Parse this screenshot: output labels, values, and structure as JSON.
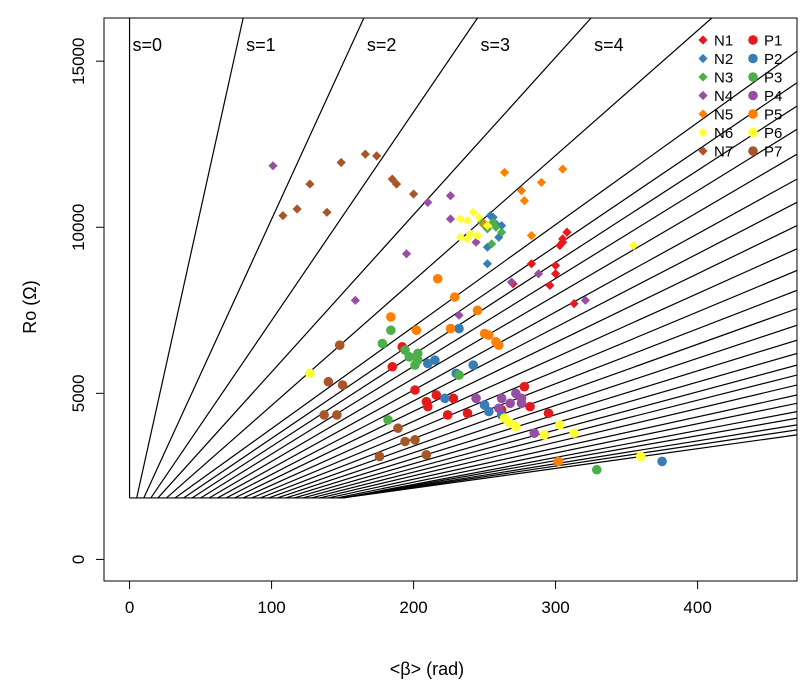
{
  "chart_data": {
    "type": "scatter",
    "title": "",
    "xlabel": "<β> (rad)",
    "ylabel": "Ro (Ω)",
    "xlim": [
      -18,
      470
    ],
    "ylim": [
      -650,
      16300
    ],
    "x_ticks": [
      0,
      100,
      200,
      300,
      400
    ],
    "y_ticks": [
      0,
      5000,
      10000,
      15000
    ],
    "grid": false,
    "legend_position": "top-right",
    "reference_lines": {
      "labels": [
        "s=0",
        "s=1",
        "s=2",
        "s=3",
        "s=4"
      ],
      "base_y": 1850,
      "lines": [
        {
          "from": [
            0,
            1850
          ],
          "to": [
            0,
            16300
          ]
        },
        {
          "from": [
            5,
            1850
          ],
          "to": [
            80,
            16300
          ]
        },
        {
          "from": [
            10,
            1850
          ],
          "to": [
            165,
            16300
          ]
        },
        {
          "from": [
            15,
            1850
          ],
          "to": [
            245,
            16300
          ]
        },
        {
          "from": [
            20,
            1850
          ],
          "to": [
            325,
            16300
          ]
        },
        {
          "from": [
            26,
            1850
          ],
          "to": [
            410,
            16300
          ]
        },
        {
          "from": [
            32,
            1850
          ],
          "to": [
            470,
            15300
          ]
        },
        {
          "from": [
            38,
            1850
          ],
          "to": [
            470,
            14350
          ]
        },
        {
          "from": [
            44,
            1850
          ],
          "to": [
            470,
            13650
          ]
        },
        {
          "from": [
            50,
            1850
          ],
          "to": [
            470,
            12950
          ]
        },
        {
          "from": [
            56,
            1850
          ],
          "to": [
            470,
            12200
          ]
        },
        {
          "from": [
            62,
            1850
          ],
          "to": [
            470,
            11450
          ]
        },
        {
          "from": [
            68,
            1850
          ],
          "to": [
            470,
            10750
          ]
        },
        {
          "from": [
            74,
            1850
          ],
          "to": [
            470,
            10050
          ]
        },
        {
          "from": [
            80,
            1850
          ],
          "to": [
            470,
            9350
          ]
        },
        {
          "from": [
            86,
            1850
          ],
          "to": [
            470,
            8700
          ]
        },
        {
          "from": [
            92,
            1850
          ],
          "to": [
            470,
            8100
          ]
        },
        {
          "from": [
            98,
            1850
          ],
          "to": [
            470,
            7550
          ]
        },
        {
          "from": [
            104,
            1850
          ],
          "to": [
            470,
            7050
          ]
        },
        {
          "from": [
            110,
            1850
          ],
          "to": [
            470,
            6600
          ]
        },
        {
          "from": [
            116,
            1850
          ],
          "to": [
            470,
            6200
          ]
        },
        {
          "from": [
            122,
            1850
          ],
          "to": [
            470,
            5850
          ]
        },
        {
          "from": [
            128,
            1850
          ],
          "to": [
            470,
            5550
          ]
        },
        {
          "from": [
            134,
            1850
          ],
          "to": [
            470,
            5250
          ]
        },
        {
          "from": [
            140,
            1850
          ],
          "to": [
            470,
            4950
          ]
        },
        {
          "from": [
            146,
            1850
          ],
          "to": [
            470,
            4700
          ]
        },
        {
          "from": [
            150,
            1850
          ],
          "to": [
            470,
            4450
          ]
        },
        {
          "from": [
            150,
            1850
          ],
          "to": [
            470,
            4250
          ]
        },
        {
          "from": [
            150,
            1850
          ],
          "to": [
            470,
            4050
          ]
        },
        {
          "from": [
            150,
            1850
          ],
          "to": [
            470,
            3900
          ]
        },
        {
          "from": [
            150,
            1850
          ],
          "to": [
            470,
            3750
          ]
        }
      ]
    },
    "series": [
      {
        "name": "N1",
        "marker": "diamond",
        "color": "#e41a1c",
        "points": [
          [
            270,
            8300
          ],
          [
            296,
            8250
          ],
          [
            300,
            8600
          ],
          [
            300,
            8850
          ],
          [
            303,
            9450
          ],
          [
            305,
            9550
          ],
          [
            305,
            9650
          ],
          [
            308,
            9850
          ],
          [
            313,
            7700
          ],
          [
            283,
            8900
          ]
        ]
      },
      {
        "name": "N2",
        "marker": "diamond",
        "color": "#377eb8",
        "points": [
          [
            252,
            8900
          ],
          [
            252,
            9400
          ],
          [
            256,
            10300
          ],
          [
            258,
            10100
          ],
          [
            254,
            10350
          ],
          [
            262,
            10050
          ],
          [
            260,
            9700
          ]
        ]
      },
      {
        "name": "N3",
        "marker": "diamond",
        "color": "#4daf4a",
        "points": [
          [
            248,
            10150
          ],
          [
            252,
            9950
          ],
          [
            255,
            9500
          ],
          [
            258,
            10000
          ],
          [
            262,
            9850
          ],
          [
            250,
            10050
          ],
          [
            256,
            10150
          ]
        ]
      },
      {
        "name": "N4",
        "marker": "diamond",
        "color": "#984ea3",
        "points": [
          [
            101,
            11850
          ],
          [
            159,
            7800
          ],
          [
            195,
            9200
          ],
          [
            210,
            10750
          ],
          [
            226,
            10950
          ],
          [
            226,
            10250
          ],
          [
            232,
            7350
          ],
          [
            244,
            9550
          ],
          [
            269,
            8350
          ],
          [
            288,
            8600
          ],
          [
            321,
            7800
          ]
        ]
      },
      {
        "name": "N5",
        "marker": "diamond",
        "color": "#ff7f00",
        "points": [
          [
            264,
            11650
          ],
          [
            276,
            11100
          ],
          [
            278,
            10800
          ],
          [
            283,
            9750
          ],
          [
            290,
            11350
          ],
          [
            305,
            11750
          ],
          [
            250,
            10100
          ]
        ]
      },
      {
        "name": "N6",
        "marker": "diamond",
        "color": "#ffff33",
        "points": [
          [
            233,
            10250
          ],
          [
            238,
            10200
          ],
          [
            242,
            10450
          ],
          [
            246,
            10300
          ],
          [
            240,
            9800
          ],
          [
            233,
            9700
          ],
          [
            238,
            9650
          ],
          [
            245,
            9750
          ],
          [
            252,
            10050
          ],
          [
            355,
            9450
          ]
        ]
      },
      {
        "name": "N7",
        "marker": "diamond",
        "color": "#a65628",
        "points": [
          [
            108,
            10350
          ],
          [
            118,
            10550
          ],
          [
            127,
            11300
          ],
          [
            139,
            10450
          ],
          [
            149,
            11950
          ],
          [
            166,
            12200
          ],
          [
            174,
            12150
          ],
          [
            185,
            11450
          ],
          [
            188,
            11300
          ],
          [
            200,
            11000
          ]
        ]
      },
      {
        "name": "P1",
        "marker": "circle",
        "color": "#e41a1c",
        "points": [
          [
            185,
            5800
          ],
          [
            192,
            6400
          ],
          [
            201,
            5100
          ],
          [
            209,
            4750
          ],
          [
            210,
            4600
          ],
          [
            216,
            4950
          ],
          [
            224,
            4350
          ],
          [
            228,
            4850
          ],
          [
            238,
            4400
          ],
          [
            250,
            4650
          ],
          [
            262,
            4500
          ],
          [
            278,
            5200
          ],
          [
            282,
            4600
          ],
          [
            295,
            4400
          ]
        ]
      },
      {
        "name": "P2",
        "marker": "circle",
        "color": "#377eb8",
        "points": [
          [
            210,
            5900
          ],
          [
            215,
            6000
          ],
          [
            222,
            4850
          ],
          [
            230,
            5600
          ],
          [
            232,
            6950
          ],
          [
            242,
            5850
          ],
          [
            250,
            4650
          ],
          [
            253,
            4450
          ],
          [
            262,
            4350
          ],
          [
            375,
            2950
          ]
        ]
      },
      {
        "name": "P3",
        "marker": "circle",
        "color": "#4daf4a",
        "points": [
          [
            178,
            6500
          ],
          [
            182,
            4200
          ],
          [
            184,
            6900
          ],
          [
            194,
            6300
          ],
          [
            197,
            6100
          ],
          [
            201,
            5850
          ],
          [
            203,
            6000
          ],
          [
            203,
            6200
          ],
          [
            232,
            5550
          ],
          [
            329,
            2700
          ]
        ]
      },
      {
        "name": "P4",
        "marker": "circle",
        "color": "#984ea3",
        "points": [
          [
            244,
            4850
          ],
          [
            260,
            4550
          ],
          [
            262,
            4850
          ],
          [
            268,
            4700
          ],
          [
            272,
            5000
          ],
          [
            276,
            4700
          ],
          [
            276,
            4850
          ],
          [
            285,
            3800
          ]
        ]
      },
      {
        "name": "P5",
        "marker": "circle",
        "color": "#ff7f00",
        "points": [
          [
            184,
            7300
          ],
          [
            202,
            6900
          ],
          [
            217,
            8450
          ],
          [
            226,
            6950
          ],
          [
            229,
            7900
          ],
          [
            245,
            7500
          ],
          [
            250,
            6800
          ],
          [
            253,
            6750
          ],
          [
            258,
            6550
          ],
          [
            260,
            6450
          ],
          [
            302,
            2950
          ]
        ]
      },
      {
        "name": "P6",
        "marker": "circle",
        "color": "#ffff33",
        "points": [
          [
            127,
            5600
          ],
          [
            264,
            4250
          ],
          [
            268,
            4100
          ],
          [
            272,
            4000
          ],
          [
            292,
            3750
          ],
          [
            303,
            4050
          ],
          [
            313,
            3800
          ],
          [
            360,
            3100
          ]
        ]
      },
      {
        "name": "P7",
        "marker": "circle",
        "color": "#a65628",
        "points": [
          [
            137,
            4350
          ],
          [
            140,
            5350
          ],
          [
            146,
            4350
          ],
          [
            148,
            6450
          ],
          [
            150,
            5250
          ],
          [
            176,
            3100
          ],
          [
            189,
            3950
          ],
          [
            194,
            3550
          ],
          [
            201,
            3600
          ],
          [
            209,
            3150
          ]
        ]
      }
    ]
  }
}
